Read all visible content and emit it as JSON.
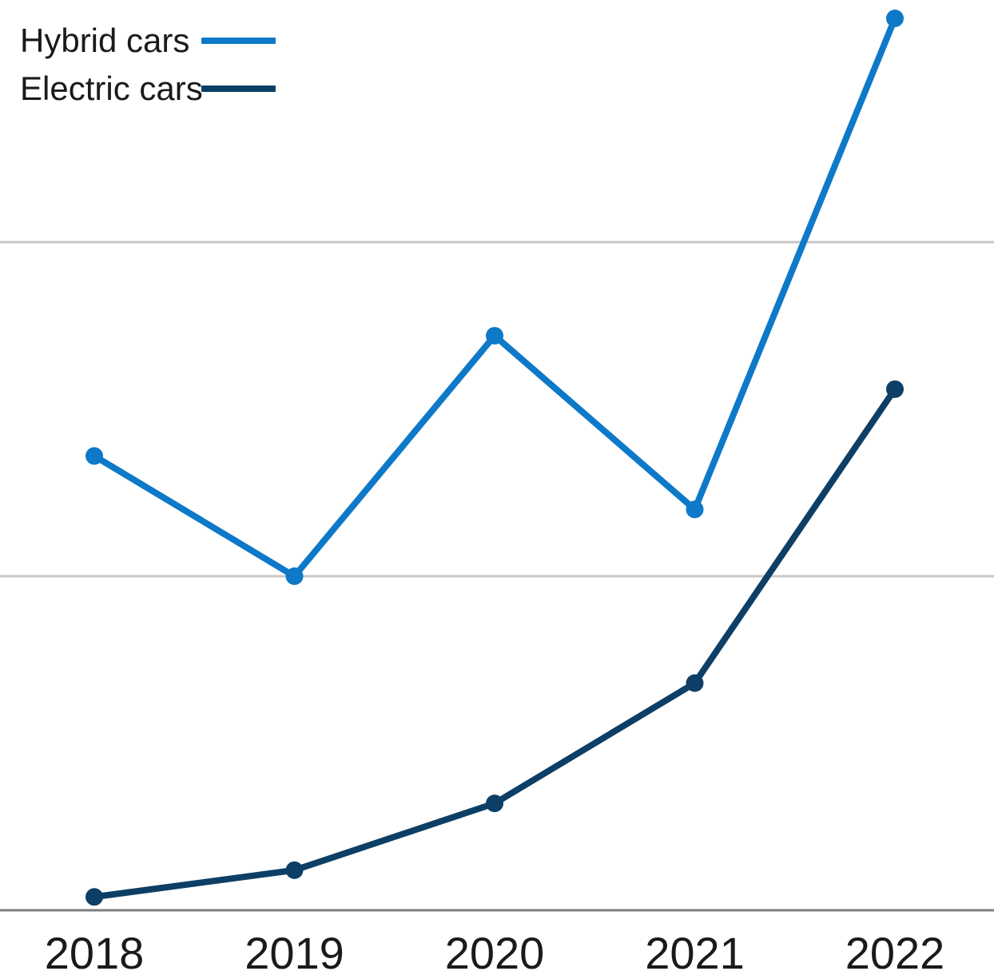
{
  "chart_data": {
    "type": "line",
    "title": "",
    "xlabel": "",
    "ylabel": "",
    "categories": [
      "2018",
      "2019",
      "2020",
      "2021",
      "2022"
    ],
    "series": [
      {
        "name": "Hybrid cars",
        "color": "#0d79c8",
        "values": [
          1.36,
          1.0,
          1.72,
          1.2,
          2.67
        ]
      },
      {
        "name": "Electric cars",
        "color": "#0d3f66",
        "values": [
          0.04,
          0.12,
          0.32,
          0.68,
          1.56
        ]
      }
    ],
    "value_units": "relative gridline units (y-axis is unlabeled; 1.0 = one gridline interval above baseline)",
    "ylim": [
      0,
      2.725
    ],
    "gridlines": {
      "y_values": [
        1,
        2
      ],
      "color": "#c9c9c9",
      "visible": true
    },
    "axis": {
      "baseline_color": "#7d7d7d",
      "y_tick_labels_visible": false
    },
    "legend": {
      "position": "top-left",
      "entries": [
        {
          "label": "Hybrid cars"
        },
        {
          "label": "Electric cars"
        }
      ]
    }
  }
}
